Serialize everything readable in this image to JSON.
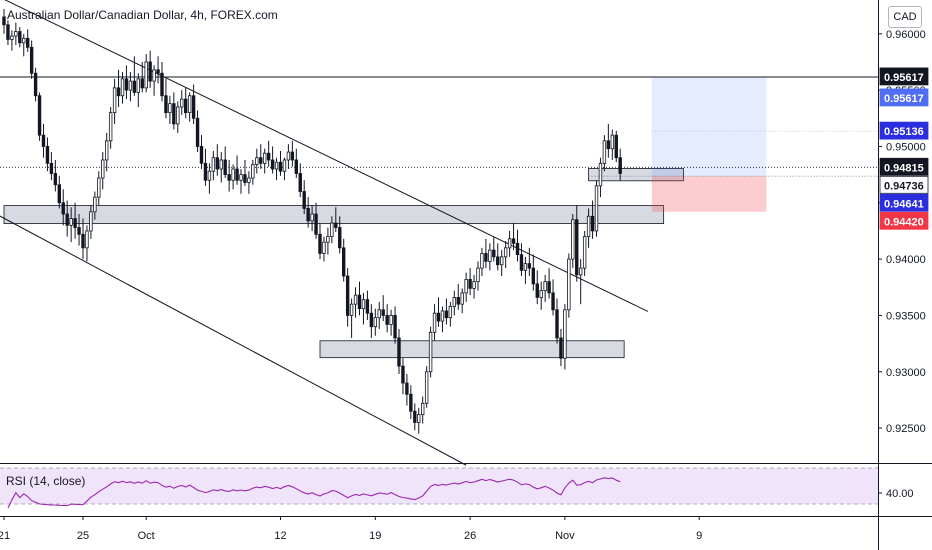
{
  "header": {
    "title": "Australian Dollar/Canadian Dollar, 4h, FOREX.com",
    "currency_badge": "CAD"
  },
  "rsi": {
    "label": "RSI (14, close)",
    "axis_label": "40.00",
    "color": "#9c27b0",
    "band_color": "#f0e4fa"
  },
  "chart_data": {
    "type": "candlestick",
    "yscale": "linear",
    "ylim": [
      0.9219,
      0.963
    ],
    "y_ticks": [
      {
        "value": 0.96,
        "label": "0.96000"
      },
      {
        "value": 0.955,
        "label": "0.95500"
      },
      {
        "value": 0.95,
        "label": "0.95000"
      },
      {
        "value": 0.945,
        "label": "0.94500"
      },
      {
        "value": 0.94,
        "label": "0.94000"
      },
      {
        "value": 0.935,
        "label": "0.93500"
      },
      {
        "value": 0.93,
        "label": "0.93000"
      },
      {
        "value": 0.925,
        "label": "0.92500"
      }
    ],
    "x_ticks": [
      {
        "label": "21",
        "index": 0
      },
      {
        "label": "25",
        "index": 20
      },
      {
        "label": "Oct",
        "index": 36
      },
      {
        "label": "12",
        "index": 70
      },
      {
        "label": "19",
        "index": 94
      },
      {
        "label": "26",
        "index": 118
      },
      {
        "label": "Nov",
        "index": 142
      },
      {
        "label": "9",
        "index": 176
      }
    ],
    "price_labels": [
      {
        "value": 0.95617,
        "label": "0.95617",
        "bg": "#131722",
        "fg": "#ffffff"
      },
      {
        "value": 0.95617,
        "label": "0.95617",
        "bg": "#4f6df5",
        "fg": "#ffffff",
        "offset_rows": 1
      },
      {
        "value": 0.95136,
        "label": "0.95136",
        "bg": "#2a2ee0",
        "fg": "#ffffff"
      },
      {
        "value": 0.94815,
        "label": "0.94815",
        "bg": "#131722",
        "fg": "#ffffff"
      },
      {
        "value": 0.94736,
        "label": "0.94736",
        "bg": "#ffffff",
        "fg": "#131722"
      },
      {
        "value": 0.94641,
        "label": "0.94641",
        "bg": "#2a2ee0",
        "fg": "#ffffff"
      },
      {
        "value": 0.9442,
        "label": "0.94420",
        "bg": "#f23645",
        "fg": "#ffffff"
      }
    ],
    "horizontal_lines": [
      {
        "value": 0.95617,
        "style": "solid"
      },
      {
        "value": 0.94815,
        "style": "dotted"
      }
    ],
    "zones": [
      {
        "x_from": 0,
        "x_to": 167,
        "y_from": 0.94315,
        "y_to": 0.94475
      },
      {
        "x_from": 80,
        "x_to": 157,
        "y_from": 0.93125,
        "y_to": 0.93275
      },
      {
        "x_from": 148,
        "x_to": 172,
        "y_from": 0.94695,
        "y_to": 0.94805
      }
    ],
    "trend_lines": [
      {
        "from": [
          -2,
          0.9634
        ],
        "to": [
          163,
          0.93535
        ]
      },
      {
        "from": [
          -2,
          0.944
        ],
        "to": [
          117,
          0.9217
        ]
      }
    ],
    "position": {
      "type": "long",
      "x_from": 164,
      "x_to": 193,
      "entry": 0.94736,
      "target": 0.95617,
      "stop": 0.9442,
      "profit_color": "#2962ff",
      "loss_color": "#f23645"
    },
    "candles": [
      [
        0.9615,
        0.9622,
        0.96,
        0.9608
      ],
      [
        0.9608,
        0.9612,
        0.959,
        0.9595
      ],
      [
        0.9595,
        0.9603,
        0.9585,
        0.9598
      ],
      [
        0.9598,
        0.961,
        0.959,
        0.9602
      ],
      [
        0.9602,
        0.9606,
        0.9588,
        0.9592
      ],
      [
        0.9592,
        0.96,
        0.958,
        0.9596
      ],
      [
        0.9596,
        0.9604,
        0.9584,
        0.9588
      ],
      [
        0.9588,
        0.9594,
        0.956,
        0.9565
      ],
      [
        0.9565,
        0.957,
        0.954,
        0.9545
      ],
      [
        0.9545,
        0.9548,
        0.9505,
        0.951
      ],
      [
        0.951,
        0.952,
        0.949,
        0.95
      ],
      [
        0.95,
        0.9508,
        0.9478,
        0.9485
      ],
      [
        0.9485,
        0.9495,
        0.947,
        0.9476
      ],
      [
        0.9476,
        0.9488,
        0.946,
        0.9466
      ],
      [
        0.9466,
        0.9474,
        0.9445,
        0.945
      ],
      [
        0.945,
        0.9462,
        0.943,
        0.944
      ],
      [
        0.944,
        0.9452,
        0.942,
        0.943
      ],
      [
        0.943,
        0.9446,
        0.9415,
        0.9436
      ],
      [
        0.9436,
        0.945,
        0.9418,
        0.9428
      ],
      [
        0.9428,
        0.944,
        0.9412,
        0.9422
      ],
      [
        0.9422,
        0.9436,
        0.94,
        0.941
      ],
      [
        0.941,
        0.943,
        0.9398,
        0.9425
      ],
      [
        0.9425,
        0.9448,
        0.9418,
        0.9442
      ],
      [
        0.9442,
        0.946,
        0.9435,
        0.9455
      ],
      [
        0.9455,
        0.9478,
        0.9448,
        0.9472
      ],
      [
        0.9472,
        0.9495,
        0.9462,
        0.9488
      ],
      [
        0.9488,
        0.9512,
        0.9478,
        0.9505
      ],
      [
        0.9505,
        0.9535,
        0.9498,
        0.953
      ],
      [
        0.953,
        0.956,
        0.952,
        0.9552
      ],
      [
        0.9552,
        0.9568,
        0.9535,
        0.9545
      ],
      [
        0.9545,
        0.9566,
        0.9538,
        0.956
      ],
      [
        0.956,
        0.9572,
        0.9542,
        0.955
      ],
      [
        0.955,
        0.9566,
        0.954,
        0.9558
      ],
      [
        0.9558,
        0.958,
        0.9545,
        0.9548
      ],
      [
        0.9548,
        0.9565,
        0.9535,
        0.956
      ],
      [
        0.956,
        0.9575,
        0.9548,
        0.9552
      ],
      [
        0.9552,
        0.9582,
        0.9548,
        0.9575
      ],
      [
        0.9575,
        0.9585,
        0.9552,
        0.9558
      ],
      [
        0.9558,
        0.9572,
        0.9545,
        0.9568
      ],
      [
        0.9568,
        0.958,
        0.9556,
        0.9565
      ],
      [
        0.9565,
        0.9575,
        0.954,
        0.9545
      ],
      [
        0.9545,
        0.956,
        0.9525,
        0.953
      ],
      [
        0.953,
        0.9545,
        0.952,
        0.9538
      ],
      [
        0.9538,
        0.9548,
        0.9515,
        0.952
      ],
      [
        0.952,
        0.954,
        0.9512,
        0.9535
      ],
      [
        0.9535,
        0.955,
        0.9528,
        0.9542
      ],
      [
        0.9542,
        0.9552,
        0.9525,
        0.953
      ],
      [
        0.953,
        0.9548,
        0.9522,
        0.9545
      ],
      [
        0.9545,
        0.9555,
        0.952,
        0.9525
      ],
      [
        0.9525,
        0.9532,
        0.9495,
        0.95
      ],
      [
        0.95,
        0.951,
        0.948,
        0.9485
      ],
      [
        0.9485,
        0.9498,
        0.9465,
        0.947
      ],
      [
        0.947,
        0.9485,
        0.9458,
        0.9478
      ],
      [
        0.9478,
        0.9496,
        0.947,
        0.949
      ],
      [
        0.949,
        0.9502,
        0.9474,
        0.948
      ],
      [
        0.948,
        0.9495,
        0.9468,
        0.9488
      ],
      [
        0.9488,
        0.95,
        0.9472,
        0.9475
      ],
      [
        0.9475,
        0.9488,
        0.946,
        0.947
      ],
      [
        0.947,
        0.9484,
        0.9462,
        0.948
      ],
      [
        0.948,
        0.9492,
        0.9466,
        0.947
      ],
      [
        0.947,
        0.948,
        0.9458,
        0.9475
      ],
      [
        0.9475,
        0.9488,
        0.9465,
        0.9468
      ],
      [
        0.9468,
        0.9478,
        0.9458,
        0.9472
      ],
      [
        0.9472,
        0.9488,
        0.9466,
        0.9484
      ],
      [
        0.9484,
        0.9498,
        0.9476,
        0.949
      ],
      [
        0.949,
        0.9502,
        0.948,
        0.9485
      ],
      [
        0.9485,
        0.9498,
        0.9476,
        0.9494
      ],
      [
        0.9494,
        0.9505,
        0.9482,
        0.9488
      ],
      [
        0.9488,
        0.95,
        0.9476,
        0.948
      ],
      [
        0.948,
        0.949,
        0.947,
        0.9486
      ],
      [
        0.9486,
        0.9496,
        0.9474,
        0.9478
      ],
      [
        0.9478,
        0.949,
        0.947,
        0.9488
      ],
      [
        0.9488,
        0.9502,
        0.948,
        0.9495
      ],
      [
        0.9495,
        0.9505,
        0.9482,
        0.9488
      ],
      [
        0.9488,
        0.9498,
        0.9472,
        0.9476
      ],
      [
        0.9476,
        0.9485,
        0.9455,
        0.946
      ],
      [
        0.946,
        0.947,
        0.944,
        0.9445
      ],
      [
        0.9445,
        0.9455,
        0.9428,
        0.9434
      ],
      [
        0.9434,
        0.9448,
        0.9425,
        0.944
      ],
      [
        0.944,
        0.945,
        0.9418,
        0.9422
      ],
      [
        0.9422,
        0.9432,
        0.94,
        0.9405
      ],
      [
        0.9405,
        0.942,
        0.9398,
        0.9415
      ],
      [
        0.9415,
        0.9428,
        0.9404,
        0.942
      ],
      [
        0.942,
        0.9438,
        0.9414,
        0.9432
      ],
      [
        0.9432,
        0.9446,
        0.9424,
        0.9428
      ],
      [
        0.9428,
        0.9438,
        0.9405,
        0.941
      ],
      [
        0.941,
        0.9418,
        0.938,
        0.9385
      ],
      [
        0.9385,
        0.9392,
        0.934,
        0.935
      ],
      [
        0.935,
        0.9365,
        0.933,
        0.936
      ],
      [
        0.936,
        0.9375,
        0.9348,
        0.9368
      ],
      [
        0.9368,
        0.938,
        0.935,
        0.9356
      ],
      [
        0.9356,
        0.937,
        0.9342,
        0.9364
      ],
      [
        0.9364,
        0.9372,
        0.9346,
        0.9352
      ],
      [
        0.9352,
        0.936,
        0.933,
        0.934
      ],
      [
        0.934,
        0.9356,
        0.9332,
        0.9348
      ],
      [
        0.9348,
        0.9362,
        0.9338,
        0.9355
      ],
      [
        0.9355,
        0.9368,
        0.9345,
        0.935
      ],
      [
        0.935,
        0.936,
        0.9335,
        0.9342
      ],
      [
        0.9342,
        0.9355,
        0.9332,
        0.935
      ],
      [
        0.935,
        0.9358,
        0.9325,
        0.933
      ],
      [
        0.933,
        0.9338,
        0.9298,
        0.9305
      ],
      [
        0.9305,
        0.9312,
        0.928,
        0.929
      ],
      [
        0.929,
        0.9298,
        0.927,
        0.928
      ],
      [
        0.928,
        0.9288,
        0.9258,
        0.9265
      ],
      [
        0.9265,
        0.9272,
        0.9248,
        0.9255
      ],
      [
        0.9255,
        0.9268,
        0.9245,
        0.9262
      ],
      [
        0.9262,
        0.9278,
        0.9254,
        0.9272
      ],
      [
        0.9272,
        0.9305,
        0.9268,
        0.93
      ],
      [
        0.93,
        0.934,
        0.9295,
        0.9335
      ],
      [
        0.9335,
        0.936,
        0.9328,
        0.9352
      ],
      [
        0.9352,
        0.9366,
        0.934,
        0.9345
      ],
      [
        0.9345,
        0.9358,
        0.9335,
        0.9354
      ],
      [
        0.9354,
        0.9365,
        0.9342,
        0.9348
      ],
      [
        0.9348,
        0.9362,
        0.934,
        0.9358
      ],
      [
        0.9358,
        0.9372,
        0.935,
        0.9366
      ],
      [
        0.9366,
        0.9378,
        0.9355,
        0.936
      ],
      [
        0.936,
        0.9374,
        0.9352,
        0.937
      ],
      [
        0.937,
        0.9388,
        0.9362,
        0.9382
      ],
      [
        0.9382,
        0.9392,
        0.9368,
        0.9374
      ],
      [
        0.9374,
        0.9386,
        0.9365,
        0.938
      ],
      [
        0.938,
        0.9398,
        0.9372,
        0.9392
      ],
      [
        0.9392,
        0.941,
        0.9385,
        0.9405
      ],
      [
        0.9405,
        0.9418,
        0.9392,
        0.9398
      ],
      [
        0.9398,
        0.9414,
        0.939,
        0.9408
      ],
      [
        0.9408,
        0.942,
        0.9398,
        0.9402
      ],
      [
        0.9402,
        0.9414,
        0.939,
        0.9395
      ],
      [
        0.9395,
        0.9408,
        0.9385,
        0.9402
      ],
      [
        0.9402,
        0.9416,
        0.9392,
        0.941
      ],
      [
        0.941,
        0.9425,
        0.9402,
        0.9418
      ],
      [
        0.9418,
        0.9432,
        0.9408,
        0.9414
      ],
      [
        0.9414,
        0.9426,
        0.9398,
        0.9404
      ],
      [
        0.9404,
        0.9414,
        0.9385,
        0.939
      ],
      [
        0.939,
        0.9402,
        0.9378,
        0.9396
      ],
      [
        0.9396,
        0.941,
        0.9385,
        0.9392
      ],
      [
        0.9392,
        0.9404,
        0.9372,
        0.9378
      ],
      [
        0.9378,
        0.939,
        0.936,
        0.9366
      ],
      [
        0.9366,
        0.938,
        0.9355,
        0.9372
      ],
      [
        0.9372,
        0.9386,
        0.9362,
        0.938
      ],
      [
        0.938,
        0.9392,
        0.9365,
        0.937
      ],
      [
        0.937,
        0.9382,
        0.935,
        0.9355
      ],
      [
        0.9355,
        0.9365,
        0.9325,
        0.933
      ],
      [
        0.933,
        0.9338,
        0.9305,
        0.9312
      ],
      [
        0.9312,
        0.936,
        0.9302,
        0.9355
      ],
      [
        0.9355,
        0.9405,
        0.9348,
        0.94
      ],
      [
        0.94,
        0.944,
        0.9392,
        0.9435
      ],
      [
        0.9435,
        0.9448,
        0.938,
        0.9386
      ],
      [
        0.9386,
        0.94,
        0.936,
        0.9392
      ],
      [
        0.9392,
        0.9425,
        0.9385,
        0.942
      ],
      [
        0.942,
        0.9445,
        0.941,
        0.9438
      ],
      [
        0.9438,
        0.9452,
        0.9418,
        0.9425
      ],
      [
        0.9425,
        0.947,
        0.942,
        0.9465
      ],
      [
        0.9465,
        0.949,
        0.9455,
        0.9485
      ],
      [
        0.9485,
        0.951,
        0.9478,
        0.9505
      ],
      [
        0.9505,
        0.952,
        0.949,
        0.9498
      ],
      [
        0.9498,
        0.9515,
        0.9488,
        0.951
      ],
      [
        0.951,
        0.9514,
        0.9486,
        0.949
      ],
      [
        0.949,
        0.9498,
        0.947,
        0.9476
      ]
    ]
  }
}
